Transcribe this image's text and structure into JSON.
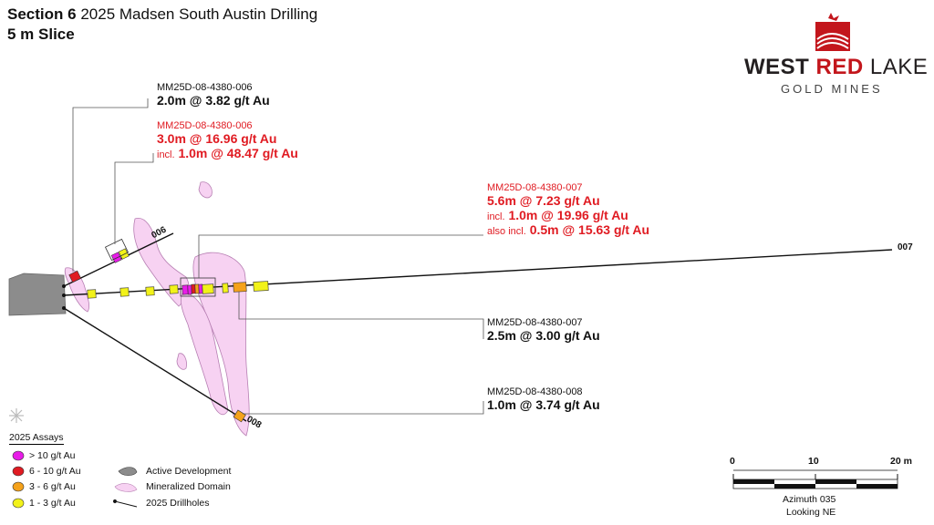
{
  "header": {
    "title_bold": "Section 6",
    "title_rest": "2025 Madsen South Austin Drilling",
    "subtitle": "5 m Slice"
  },
  "logo": {
    "word_west": "WEST",
    "word_red": "RED",
    "word_lake": "LAKE",
    "sub": "GOLD MINES",
    "brand_red": "#c3161c",
    "brand_dark": "#231f20"
  },
  "drillholes": [
    {
      "label": "006"
    },
    {
      "label": "007"
    },
    {
      "label": "008"
    }
  ],
  "callouts": {
    "c1": {
      "id": "MM25D-08-4380-006",
      "line1": "2.0m @ 3.82 g/t Au"
    },
    "c2": {
      "id": "MM25D-08-4380-006",
      "line1": "3.0m @ 16.96 g/t Au",
      "incl_prefix": "incl.",
      "incl_value": "1.0m @ 48.47 g/t Au"
    },
    "c3": {
      "id": "MM25D-08-4380-007",
      "line1": "5.6m @ 7.23 g/t Au",
      "incl_prefix": "incl.",
      "incl_value": "1.0m @ 19.96 g/t Au",
      "also_prefix": "also incl.",
      "also_value": "0.5m @ 15.63 g/t Au"
    },
    "c4": {
      "id": "MM25D-08-4380-007",
      "line1": "2.5m @ 3.00 g/t Au"
    },
    "c5": {
      "id": "MM25D-08-4380-008",
      "line1": "1.0m @ 3.74 g/t Au"
    }
  },
  "legend": {
    "title": "2025 Assays",
    "assays": [
      {
        "label": "> 10 g/t Au",
        "color": "#e81ce8"
      },
      {
        "label": "6 - 10 g/t Au",
        "color": "#e01b22"
      },
      {
        "label": "3 - 6 g/t Au",
        "color": "#f5a21b"
      },
      {
        "label": "1 - 3 g/t Au",
        "color": "#f2f21a"
      }
    ],
    "active_development": "Active Development",
    "mineralized_domain": "Mineralized Domain",
    "drillholes": "2025 Drillholes",
    "active_color": "#8c8c8c",
    "domain_color": "#f7d2f2"
  },
  "scale_bar": {
    "tick_labels": [
      "0",
      "10",
      "20 m"
    ],
    "azimuth": "Azimuth 035",
    "looking": "Looking NE"
  }
}
